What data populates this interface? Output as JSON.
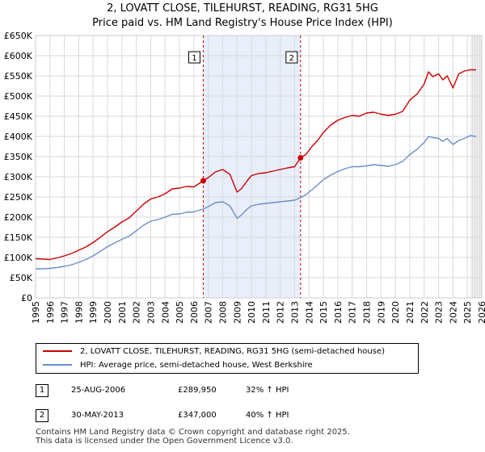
{
  "title": {
    "line1": "2, LOVATT CLOSE, TILEHURST, READING, RG31 5HG",
    "line2": "Price paid vs. HM Land Registry's House Price Index (HPI)"
  },
  "colors": {
    "property": "#cc0000",
    "hpi": "#6a8fc8",
    "shade": "#e8eefa",
    "marker_line": "#cc0000"
  },
  "chart_data": {
    "type": "line",
    "xlim": [
      1995,
      2026
    ],
    "ylim": [
      0,
      650000
    ],
    "y_ticks": [
      0,
      50000,
      100000,
      150000,
      200000,
      250000,
      300000,
      350000,
      400000,
      450000,
      500000,
      550000,
      600000,
      650000
    ],
    "y_tick_labels": [
      "£0",
      "£50K",
      "£100K",
      "£150K",
      "£200K",
      "£250K",
      "£300K",
      "£350K",
      "£400K",
      "£450K",
      "£500K",
      "£550K",
      "£600K",
      "£650K"
    ],
    "x_ticks": [
      1995,
      1996,
      1997,
      1998,
      1999,
      2000,
      2001,
      2002,
      2003,
      2004,
      2005,
      2006,
      2007,
      2008,
      2009,
      2010,
      2011,
      2012,
      2013,
      2014,
      2015,
      2016,
      2017,
      2018,
      2019,
      2020,
      2021,
      2022,
      2023,
      2024,
      2025,
      2026
    ],
    "x_tick_labels": [
      "1995",
      "1996",
      "1997",
      "1998",
      "1999",
      "2000",
      "2001",
      "2002",
      "2003",
      "2004",
      "2005",
      "2006",
      "2007",
      "2008",
      "2009",
      "2010",
      "2011",
      "2012",
      "2013",
      "2014",
      "2015",
      "2016",
      "2017",
      "2018",
      "2019",
      "2020",
      "2021",
      "2022",
      "2023",
      "2024",
      "2025",
      "2026"
    ],
    "grid": true,
    "shaded_range": [
      2006.65,
      2013.41
    ],
    "projection_start": 2025.2,
    "series": [
      {
        "name": "2, LOVATT CLOSE, TILEHURST, READING, RG31 5HG (semi-detached house)",
        "x": [
          1995.0,
          1995.5,
          1996.0,
          1996.5,
          1997.0,
          1997.5,
          1998.0,
          1998.5,
          1999.0,
          1999.5,
          2000.0,
          2000.5,
          2001.0,
          2001.5,
          2002.0,
          2002.5,
          2003.0,
          2003.5,
          2004.0,
          2004.5,
          2005.0,
          2005.5,
          2006.0,
          2006.65,
          2007.0,
          2007.5,
          2008.0,
          2008.5,
          2009.0,
          2009.3,
          2009.7,
          2010.0,
          2010.5,
          2011.0,
          2011.5,
          2012.0,
          2012.5,
          2013.0,
          2013.41,
          2013.8,
          2014.2,
          2014.6,
          2015.0,
          2015.5,
          2016.0,
          2016.5,
          2017.0,
          2017.5,
          2018.0,
          2018.5,
          2019.0,
          2019.5,
          2020.0,
          2020.5,
          2021.0,
          2021.5,
          2022.0,
          2022.3,
          2022.6,
          2023.0,
          2023.3,
          2023.6,
          2024.0,
          2024.4,
          2024.8,
          2025.2,
          2025.6
        ],
        "values": [
          97000,
          96000,
          95000,
          99000,
          104000,
          110000,
          118000,
          126000,
          137000,
          150000,
          164000,
          175000,
          188000,
          198000,
          215000,
          232000,
          245000,
          250000,
          258000,
          270000,
          272000,
          276000,
          275000,
          289950,
          298000,
          312000,
          318000,
          306000,
          262000,
          270000,
          290000,
          303000,
          308000,
          310000,
          314000,
          318000,
          322000,
          325000,
          347000,
          356000,
          375000,
          390000,
          410000,
          428000,
          440000,
          447000,
          452000,
          450000,
          458000,
          460000,
          455000,
          452000,
          455000,
          462000,
          490000,
          505000,
          530000,
          560000,
          548000,
          555000,
          540000,
          550000,
          520000,
          555000,
          562000,
          565000,
          565000
        ]
      },
      {
        "name": "HPI: Average price, semi-detached house, West Berkshire",
        "x": [
          1995.0,
          1995.5,
          1996.0,
          1996.5,
          1997.0,
          1997.5,
          1998.0,
          1998.5,
          1999.0,
          1999.5,
          2000.0,
          2000.5,
          2001.0,
          2001.5,
          2002.0,
          2002.5,
          2003.0,
          2003.5,
          2004.0,
          2004.5,
          2005.0,
          2005.5,
          2006.0,
          2006.65,
          2007.0,
          2007.5,
          2008.0,
          2008.5,
          2009.0,
          2009.3,
          2009.7,
          2010.0,
          2010.5,
          2011.0,
          2011.5,
          2012.0,
          2012.5,
          2013.0,
          2013.41,
          2013.8,
          2014.2,
          2014.6,
          2015.0,
          2015.5,
          2016.0,
          2016.5,
          2017.0,
          2017.5,
          2018.0,
          2018.5,
          2019.0,
          2019.5,
          2020.0,
          2020.5,
          2021.0,
          2021.5,
          2022.0,
          2022.3,
          2022.6,
          2023.0,
          2023.3,
          2023.6,
          2024.0,
          2024.4,
          2024.8,
          2025.2,
          2025.6
        ],
        "values": [
          72000,
          72000,
          73000,
          75000,
          78000,
          82000,
          88000,
          95000,
          104000,
          115000,
          127000,
          136000,
          145000,
          153000,
          166000,
          180000,
          190000,
          194000,
          200000,
          207000,
          208000,
          212000,
          213000,
          220000,
          226000,
          236000,
          238000,
          228000,
          197000,
          205000,
          220000,
          228000,
          232000,
          234000,
          236000,
          238000,
          240000,
          242000,
          248000,
          256000,
          268000,
          280000,
          293000,
          304000,
          313000,
          320000,
          325000,
          325000,
          327000,
          330000,
          328000,
          326000,
          330000,
          338000,
          355000,
          368000,
          385000,
          400000,
          397000,
          395000,
          388000,
          395000,
          380000,
          390000,
          395000,
          402000,
          400000
        ]
      }
    ],
    "markers": [
      {
        "label": "1",
        "x": 2006.65,
        "y": 289950
      },
      {
        "label": "2",
        "x": 2013.41,
        "y": 347000
      }
    ]
  },
  "legend": {
    "property_label": "2, LOVATT CLOSE, TILEHURST, READING, RG31 5HG (semi-detached house)",
    "hpi_label": "HPI: Average price, semi-detached house, West Berkshire"
  },
  "sales": [
    {
      "num": "1",
      "date": "25-AUG-2006",
      "price": "£289,950",
      "hpi": "32% ↑ HPI"
    },
    {
      "num": "2",
      "date": "30-MAY-2013",
      "price": "£347,000",
      "hpi": "40% ↑ HPI"
    }
  ],
  "footer": {
    "line1": "Contains HM Land Registry data © Crown copyright and database right 2025.",
    "line2": "This data is licensed under the Open Government Licence v3.0."
  }
}
